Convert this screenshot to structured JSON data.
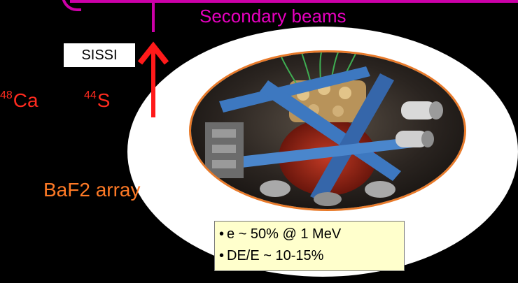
{
  "title": "Secondary beams",
  "sissi_label": "SISSI",
  "isotopes": [
    {
      "mass": "48",
      "symbol": "Ca"
    },
    {
      "mass": "44",
      "symbol": "S"
    }
  ],
  "detector_label": "BaF2 array",
  "info": [
    "e ~ 50% @ 1 MeV",
    "DE/E ~ 10-15%"
  ],
  "colors": {
    "beam": "#cc00a8",
    "title": "#e800c0",
    "isotope": "#ff2b1f",
    "arrow": "#ff1a1a",
    "detector_label": "#ff7a26",
    "photo_border": "#e87a2a",
    "info_background": "#ffffcc"
  }
}
